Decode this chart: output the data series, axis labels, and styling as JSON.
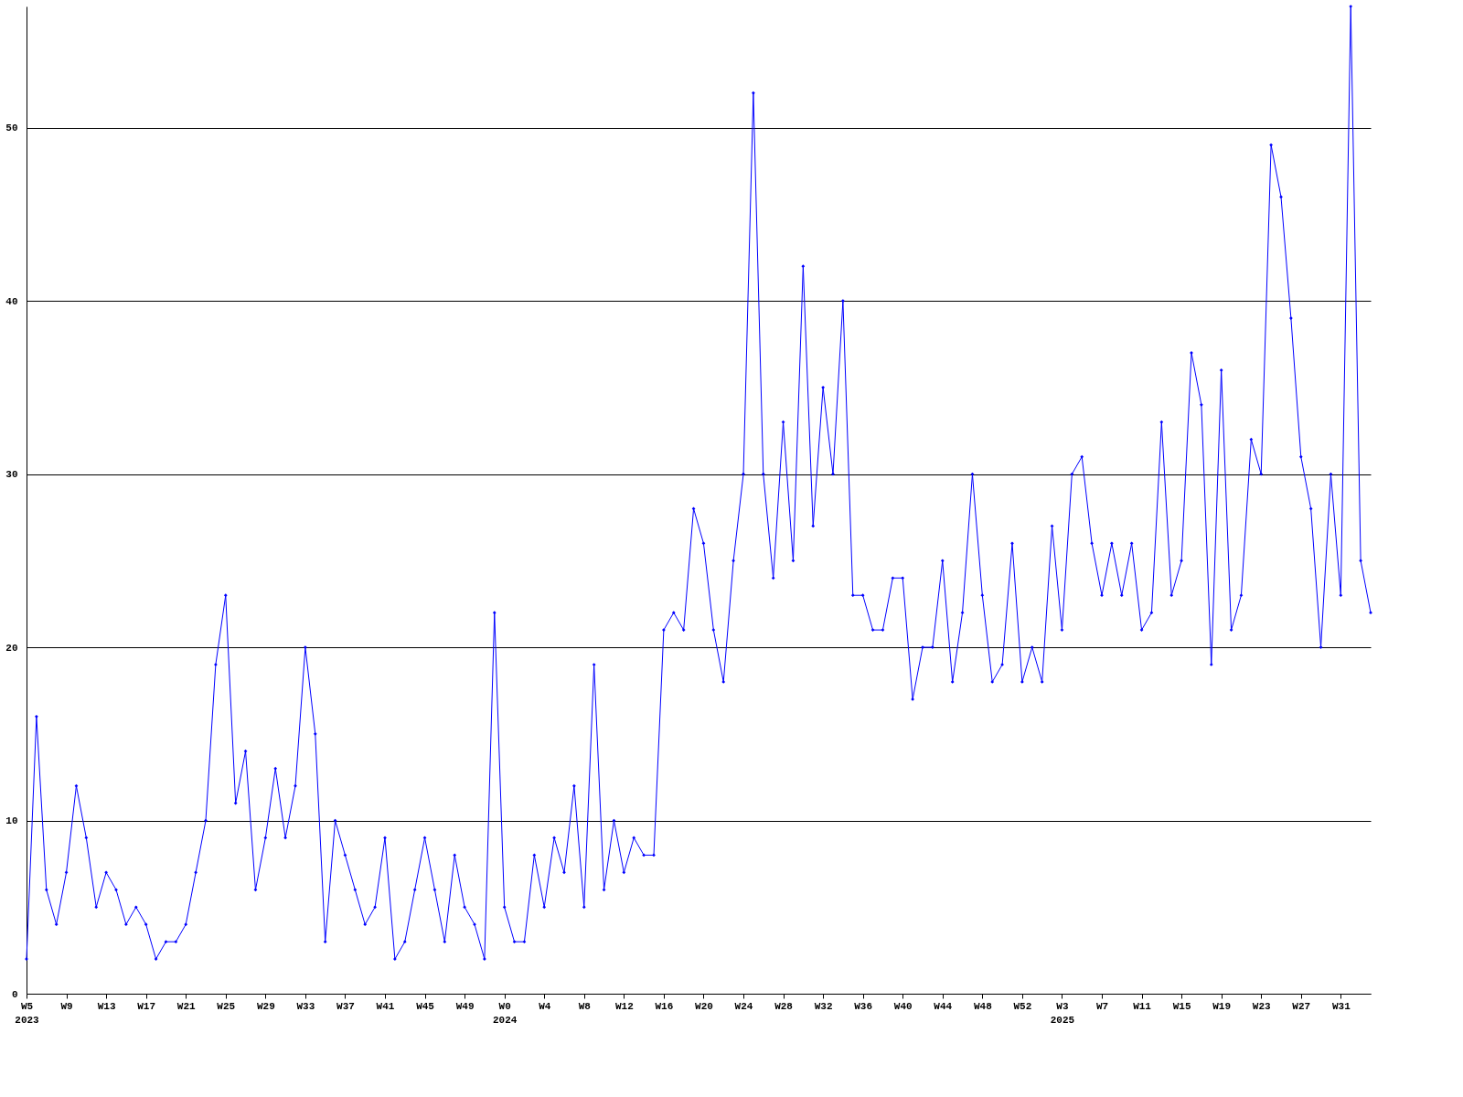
{
  "chart_data": {
    "type": "line",
    "categories": [
      "W5\n2023",
      null,
      null,
      null,
      "W9",
      null,
      null,
      null,
      "W13",
      null,
      null,
      null,
      "W17",
      null,
      null,
      null,
      "W21",
      null,
      null,
      null,
      "W25",
      null,
      null,
      null,
      "W29",
      null,
      null,
      null,
      "W33",
      null,
      null,
      null,
      "W37",
      null,
      null,
      null,
      "W41",
      null,
      null,
      null,
      "W45",
      null,
      null,
      null,
      "W49",
      null,
      null,
      null,
      "W0\n2024",
      null,
      null,
      null,
      "W4",
      null,
      null,
      null,
      "W8",
      null,
      null,
      null,
      "W12",
      null,
      null,
      null,
      "W16",
      null,
      null,
      null,
      "W20",
      null,
      null,
      null,
      "W24",
      null,
      null,
      null,
      "W28",
      null,
      null,
      null,
      "W32",
      null,
      null,
      null,
      "W36",
      null,
      null,
      null,
      "W40",
      null,
      null,
      null,
      "W44",
      null,
      null,
      null,
      "W48",
      null,
      null,
      null,
      "W52",
      null,
      null,
      null,
      "W3\n2025",
      null,
      null,
      null,
      "W7",
      null,
      null,
      null,
      "W11",
      null,
      null,
      null,
      "W15",
      null,
      null,
      null,
      "W19",
      null,
      null,
      null,
      "W23",
      null,
      null,
      null,
      "W27",
      null,
      null,
      null,
      "W31",
      null,
      null,
      null
    ],
    "series": [
      {
        "color": "#0000ff",
        "values": [
          2,
          16,
          6,
          4,
          7,
          12,
          9,
          5,
          7,
          6,
          4,
          5,
          4,
          2,
          3,
          3,
          4,
          7,
          10,
          19,
          23,
          11,
          14,
          6,
          9,
          13,
          9,
          12,
          20,
          15,
          3,
          10,
          8,
          6,
          4,
          5,
          9,
          2,
          3,
          6,
          9,
          6,
          3,
          8,
          5,
          4,
          2,
          22,
          5,
          3,
          3,
          8,
          5,
          9,
          7,
          12,
          5,
          19,
          6,
          10,
          7,
          9,
          8,
          8,
          21,
          22,
          21,
          28,
          26,
          21,
          18,
          25,
          30,
          52,
          30,
          24,
          33,
          25,
          42,
          27,
          35,
          30,
          40,
          23,
          23,
          21,
          21,
          24,
          24,
          17,
          20,
          20,
          25,
          18,
          22,
          30,
          23,
          18,
          19,
          26,
          18,
          20,
          18,
          27,
          21,
          30,
          31,
          26,
          23,
          26,
          23,
          26,
          21,
          22,
          33,
          23,
          25,
          37,
          34,
          19,
          36,
          21,
          23,
          32,
          30,
          49,
          46,
          39,
          31,
          28,
          20,
          30,
          23,
          57,
          25,
          22
        ]
      }
    ],
    "ylim": [
      0,
      57
    ],
    "yticks": [
      0,
      10,
      20,
      30,
      40,
      50
    ],
    "grid": "y",
    "marker": "diamond",
    "line_style": "solid"
  }
}
